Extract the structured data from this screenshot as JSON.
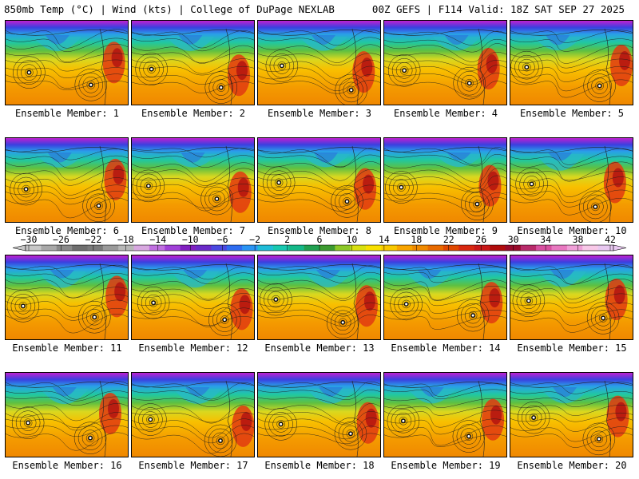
{
  "header": {
    "left": "850mb Temp (°C) | Wind (kts) | College of DuPage NEXLAB",
    "right": "00Z GEFS | F114 Valid: 18Z SAT SEP 27 2025"
  },
  "members": [
    "Ensemble Member: 1",
    "Ensemble Member: 2",
    "Ensemble Member: 3",
    "Ensemble Member: 4",
    "Ensemble Member: 5",
    "Ensemble Member: 6",
    "Ensemble Member: 7",
    "Ensemble Member: 8",
    "Ensemble Member: 9",
    "Ensemble Member: 10",
    "Ensemble Member: 11",
    "Ensemble Member: 12",
    "Ensemble Member: 13",
    "Ensemble Member: 14",
    "Ensemble Member: 15",
    "Ensemble Member: 16",
    "Ensemble Member: 17",
    "Ensemble Member: 18",
    "Ensemble Member: 19",
    "Ensemble Member: 20"
  ],
  "colorbar": {
    "ticks": [
      "-30",
      "-26",
      "-22",
      "-18",
      "-14",
      "-10",
      "-6",
      "-2",
      "2",
      "6",
      "10",
      "14",
      "18",
      "22",
      "26",
      "30",
      "34",
      "38",
      "42"
    ],
    "colors": [
      "#c8c8c8",
      "#a8a8a8",
      "#8a8a8a",
      "#6e6e6e",
      "#7a7a7a",
      "#9a9a9a",
      "#b8b8b8",
      "#d8a8e0",
      "#c070e0",
      "#a040d8",
      "#8020c0",
      "#6a2ac8",
      "#4a48e0",
      "#2e6cf0",
      "#2a94f4",
      "#20bcd8",
      "#18c8b0",
      "#14b888",
      "#20a050",
      "#3c9a30",
      "#8cc828",
      "#d8e010",
      "#f8e000",
      "#f8c800",
      "#f8a400",
      "#f08a00",
      "#e86a00",
      "#e04800",
      "#d82810",
      "#c81818",
      "#b00c0c",
      "#980a2a",
      "#b82a6a",
      "#d850a0",
      "#e878c0",
      "#f0a0d8",
      "#f8c8e8",
      "#e8c8f0"
    ]
  }
}
